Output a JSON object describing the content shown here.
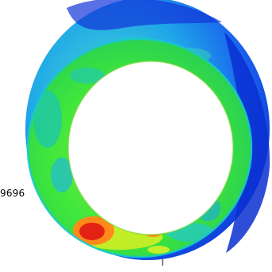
{
  "figure": {
    "partial_label": "9696",
    "colors": {
      "background": "#ffffff",
      "outer_shell": "#1e6ef2",
      "outer_dark": "#0a2fd1",
      "inner_green": "#2fe23a",
      "hotspot_red": "#e22212",
      "hotspot_orange": "#ff8a1a",
      "yellow": "#e8f21f",
      "cyan": "#19d0e0"
    }
  }
}
